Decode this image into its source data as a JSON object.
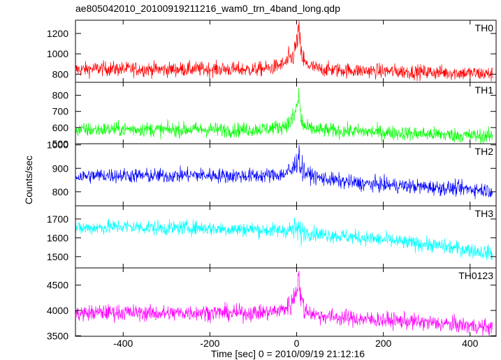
{
  "chart_data": {
    "type": "line",
    "title": "ae805042010_20100919211216_wam0_trn_4band_long.qdp",
    "xlabel": "Time [sec] 0 = 2010/09/19 21:12:16",
    "ylabel": "Counts/sec",
    "xlim": [
      -510,
      460
    ],
    "x_ticks": [
      -400,
      -200,
      0,
      200,
      400
    ],
    "grid": false,
    "panels": [
      {
        "name": "TH0",
        "color": "#ff0000",
        "ylim": [
          720,
          1330
        ],
        "y_ticks": [
          800,
          1000,
          1200
        ],
        "x": [
          -500,
          -450,
          -400,
          -350,
          -300,
          -250,
          -200,
          -150,
          -100,
          -60,
          -30,
          -10,
          0,
          5,
          10,
          20,
          50,
          100,
          150,
          200,
          250,
          300,
          350,
          400,
          455
        ],
        "y": [
          845,
          855,
          850,
          850,
          845,
          850,
          850,
          848,
          845,
          860,
          900,
          960,
          1100,
          1250,
          1000,
          900,
          850,
          840,
          835,
          830,
          825,
          820,
          815,
          810,
          800
        ]
      },
      {
        "name": "TH1",
        "color": "#00ff00",
        "ylim": [
          500,
          880
        ],
        "y_ticks": [
          500,
          600,
          700,
          800
        ],
        "x": [
          -500,
          -450,
          -400,
          -350,
          -300,
          -250,
          -200,
          -150,
          -100,
          -60,
          -30,
          -10,
          0,
          5,
          10,
          20,
          50,
          100,
          150,
          200,
          250,
          300,
          350,
          400,
          455
        ],
        "y": [
          585,
          588,
          590,
          590,
          585,
          588,
          588,
          585,
          588,
          595,
          610,
          640,
          720,
          800,
          650,
          600,
          585,
          580,
          575,
          570,
          565,
          560,
          555,
          550,
          545
        ]
      },
      {
        "name": "TH2",
        "color": "#0000ff",
        "ylim": [
          740,
          1005
        ],
        "y_ticks": [
          800,
          900,
          1000
        ],
        "x": [
          -500,
          -450,
          -400,
          -350,
          -300,
          -250,
          -200,
          -150,
          -100,
          -60,
          -30,
          -10,
          0,
          5,
          10,
          20,
          50,
          100,
          150,
          200,
          250,
          300,
          350,
          400,
          455
        ],
        "y": [
          865,
          870,
          870,
          868,
          868,
          872,
          870,
          868,
          868,
          870,
          875,
          890,
          930,
          960,
          900,
          880,
          860,
          845,
          835,
          830,
          825,
          820,
          815,
          812,
          805
        ]
      },
      {
        "name": "TH3",
        "color": "#00ffff",
        "ylim": [
          1440,
          1770
        ],
        "y_ticks": [
          1500,
          1600,
          1700
        ],
        "x": [
          -500,
          -450,
          -400,
          -350,
          -300,
          -250,
          -200,
          -150,
          -100,
          -60,
          -30,
          -10,
          0,
          5,
          10,
          20,
          50,
          100,
          150,
          200,
          250,
          300,
          350,
          400,
          455
        ],
        "y": [
          1650,
          1655,
          1660,
          1655,
          1650,
          1655,
          1650,
          1645,
          1645,
          1640,
          1640,
          1640,
          1645,
          1640,
          1630,
          1630,
          1620,
          1610,
          1600,
          1590,
          1575,
          1565,
          1550,
          1535,
          1515
        ]
      },
      {
        "name": "TH0123",
        "color": "#ff00ff",
        "ylim": [
          3490,
          4840
        ],
        "y_ticks": [
          3500,
          4000,
          4500
        ],
        "x": [
          -500,
          -450,
          -400,
          -350,
          -300,
          -250,
          -200,
          -150,
          -100,
          -60,
          -30,
          -10,
          0,
          5,
          10,
          20,
          50,
          100,
          150,
          200,
          250,
          300,
          350,
          400,
          455
        ],
        "y": [
          3940,
          3960,
          3960,
          3950,
          3940,
          3960,
          3960,
          3950,
          3950,
          3970,
          4020,
          4150,
          4450,
          4700,
          4200,
          4000,
          3900,
          3860,
          3830,
          3810,
          3790,
          3760,
          3730,
          3700,
          3650
        ]
      }
    ]
  }
}
